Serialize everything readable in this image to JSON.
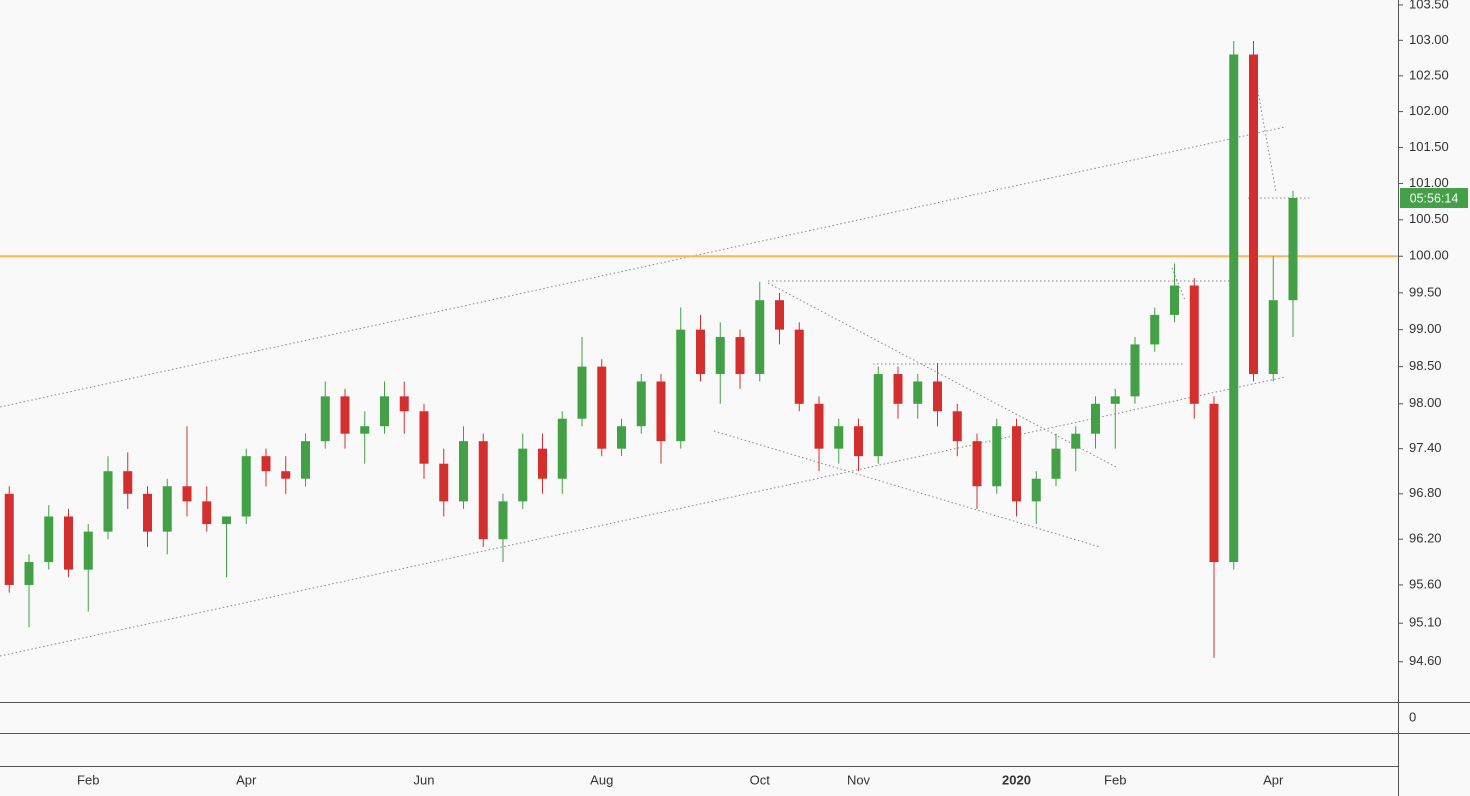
{
  "chart_data": {
    "type": "candlestick",
    "log_scale": true,
    "ylim": [
      94.08,
      103.57
    ],
    "yticks": [
      {
        "value": 103.5,
        "label": "103.50"
      },
      {
        "value": 103,
        "label": "103.00"
      },
      {
        "value": 102.5,
        "label": "102.50"
      },
      {
        "value": 102,
        "label": "102.00"
      },
      {
        "value": 101.5,
        "label": "101.50"
      },
      {
        "value": 101,
        "label": "101.00"
      },
      {
        "value": 100.5,
        "label": "100.50"
      },
      {
        "value": 100,
        "label": "100.00"
      },
      {
        "value": 99.5,
        "label": "99.50"
      },
      {
        "value": 99,
        "label": "99.00"
      },
      {
        "value": 98.5,
        "label": "98.50"
      },
      {
        "value": 98,
        "label": "98.00"
      },
      {
        "value": 97.4,
        "label": "97.40"
      },
      {
        "value": 96.8,
        "label": "96.80"
      },
      {
        "value": 96.2,
        "label": "96.20"
      },
      {
        "value": 95.6,
        "label": "95.60"
      },
      {
        "value": 95.1,
        "label": "95.10"
      },
      {
        "value": 94.6,
        "label": "94.60"
      }
    ],
    "up_color": "#43a047",
    "down_color": "#d32f2f",
    "categories": [
      null,
      null,
      null,
      null,
      "Feb",
      null,
      null,
      null,
      null,
      null,
      null,
      null,
      "Apr",
      null,
      null,
      null,
      null,
      null,
      null,
      null,
      null,
      "Jun",
      null,
      null,
      null,
      null,
      null,
      null,
      null,
      null,
      "Aug",
      null,
      null,
      null,
      null,
      null,
      null,
      null,
      "Oct",
      null,
      null,
      null,
      null,
      "Nov",
      null,
      null,
      null,
      null,
      null,
      null,
      null,
      "2020",
      null,
      null,
      null,
      null,
      "Feb",
      null,
      null,
      null,
      null,
      null,
      null,
      null,
      "Apr",
      null
    ],
    "open": [
      96.8,
      95.6,
      95.9,
      96.5,
      95.8,
      96.3,
      97.1,
      96.8,
      96.3,
      96.9,
      96.7,
      96.4,
      96.5,
      97.3,
      97.1,
      97.0,
      97.5,
      98.1,
      97.6,
      97.7,
      98.1,
      97.9,
      97.2,
      96.7,
      97.5,
      96.2,
      96.7,
      97.4,
      97.0,
      97.8,
      98.5,
      97.4,
      97.7,
      98.3,
      97.5,
      99.0,
      98.4,
      98.9,
      98.4,
      99.4,
      99.0,
      98.0,
      97.4,
      97.7,
      97.3,
      98.4,
      98.0,
      98.3,
      97.9,
      97.5,
      96.9,
      97.7,
      96.7,
      97.0,
      97.4,
      97.6,
      98.0,
      98.1,
      98.8,
      99.2,
      99.6,
      98.0,
      95.9,
      102.8,
      98.4,
      99.4
    ],
    "high": [
      96.9,
      96.0,
      96.65,
      96.6,
      96.4,
      97.3,
      97.35,
      96.9,
      97.0,
      97.7,
      96.9,
      96.5,
      97.4,
      97.4,
      97.3,
      97.6,
      98.3,
      98.2,
      97.9,
      98.3,
      98.3,
      98.0,
      97.4,
      97.7,
      97.6,
      96.8,
      97.6,
      97.6,
      97.9,
      98.9,
      98.6,
      97.8,
      98.4,
      98.4,
      99.3,
      99.2,
      99.1,
      99.0,
      99.65,
      99.5,
      99.1,
      98.1,
      97.8,
      97.8,
      98.5,
      98.5,
      98.4,
      98.55,
      98.0,
      97.6,
      97.8,
      97.8,
      97.1,
      97.6,
      97.7,
      98.1,
      98.2,
      98.9,
      99.3,
      99.9,
      99.7,
      98.1,
      102.99,
      102.99,
      100.0,
      100.9
    ],
    "low": [
      95.5,
      95.05,
      95.8,
      95.7,
      95.25,
      96.2,
      96.6,
      96.1,
      96.0,
      96.5,
      96.3,
      95.7,
      96.4,
      96.9,
      96.8,
      96.9,
      97.4,
      97.4,
      97.2,
      97.6,
      97.6,
      97.0,
      96.5,
      96.6,
      96.1,
      95.9,
      96.6,
      96.8,
      96.8,
      97.7,
      97.3,
      97.3,
      97.6,
      97.2,
      97.4,
      98.3,
      98.0,
      98.2,
      98.3,
      98.8,
      97.9,
      97.1,
      97.2,
      97.1,
      97.2,
      97.8,
      97.8,
      97.7,
      97.3,
      96.6,
      96.8,
      96.5,
      96.4,
      96.9,
      97.1,
      97.4,
      97.4,
      98.0,
      98.7,
      99.1,
      97.8,
      94.65,
      95.8,
      98.3,
      98.3,
      98.9
    ],
    "close": [
      95.6,
      95.9,
      96.5,
      95.8,
      96.3,
      97.1,
      96.8,
      96.3,
      96.9,
      96.7,
      96.4,
      96.5,
      97.3,
      97.1,
      97.0,
      97.5,
      98.1,
      97.6,
      97.7,
      98.1,
      97.9,
      97.2,
      96.7,
      97.5,
      96.2,
      96.7,
      97.4,
      97.0,
      97.8,
      98.5,
      97.4,
      97.7,
      98.3,
      97.5,
      99.0,
      98.4,
      98.9,
      98.4,
      99.4,
      99.0,
      98.0,
      97.4,
      97.7,
      97.3,
      98.4,
      98.0,
      98.3,
      97.9,
      97.5,
      96.9,
      97.7,
      96.7,
      97.0,
      97.4,
      97.6,
      98.0,
      98.1,
      98.8,
      99.2,
      99.6,
      98.0,
      95.9,
      102.8,
      98.4,
      99.4,
      100.8
    ],
    "hlines": [
      {
        "value": 100,
        "color": "#ffb74d"
      }
    ],
    "countdown": {
      "text": "05:56:14",
      "color": "#43a047"
    },
    "lower_pane": {
      "yticks": [
        0
      ]
    }
  }
}
